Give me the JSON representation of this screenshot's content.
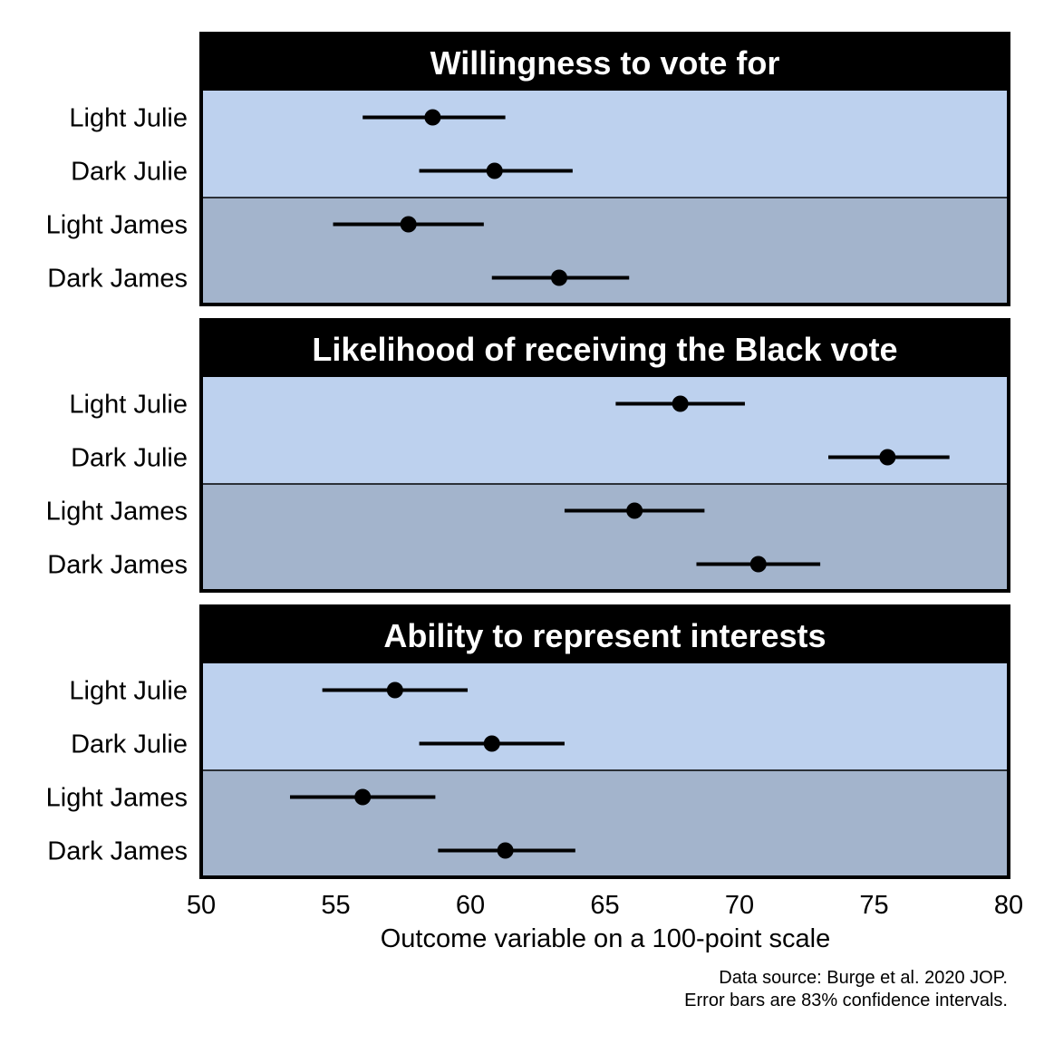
{
  "chart_data": {
    "type": "dot-whisker",
    "xlabel": "Outcome variable on a 100-point scale",
    "xlim": [
      50,
      80
    ],
    "xticks": [
      50,
      55,
      60,
      65,
      70,
      75,
      80
    ],
    "xtick_labels": [
      "50",
      "55",
      "60",
      "65",
      "70",
      "75",
      "80"
    ],
    "grid": false,
    "colors": {
      "julie_band": "#BDD1EE",
      "james_band": "#A3B4CC",
      "header": "#000000",
      "marks": "#000000"
    },
    "panels": [
      {
        "title": "Willingness to vote for",
        "rows": [
          {
            "label": "Light Julie",
            "estimate": 58.6,
            "lower": 56.0,
            "upper": 61.3
          },
          {
            "label": "Dark Julie",
            "estimate": 60.9,
            "lower": 58.1,
            "upper": 63.8
          },
          {
            "label": "Light James",
            "estimate": 57.7,
            "lower": 54.9,
            "upper": 60.5
          },
          {
            "label": "Dark James",
            "estimate": 63.3,
            "lower": 60.8,
            "upper": 65.9
          }
        ]
      },
      {
        "title": "Likelihood of receiving the Black vote",
        "rows": [
          {
            "label": "Light Julie",
            "estimate": 67.8,
            "lower": 65.4,
            "upper": 70.2
          },
          {
            "label": "Dark Julie",
            "estimate": 75.5,
            "lower": 73.3,
            "upper": 77.8
          },
          {
            "label": "Light James",
            "estimate": 66.1,
            "lower": 63.5,
            "upper": 68.7
          },
          {
            "label": "Dark James",
            "estimate": 70.7,
            "lower": 68.4,
            "upper": 73.0
          }
        ]
      },
      {
        "title": "Ability to represent interests",
        "rows": [
          {
            "label": "Light Julie",
            "estimate": 57.2,
            "lower": 54.5,
            "upper": 59.9
          },
          {
            "label": "Dark Julie",
            "estimate": 60.8,
            "lower": 58.1,
            "upper": 63.5
          },
          {
            "label": "Light James",
            "estimate": 56.0,
            "lower": 53.3,
            "upper": 58.7
          },
          {
            "label": "Dark James",
            "estimate": 61.3,
            "lower": 58.8,
            "upper": 63.9
          }
        ]
      }
    ],
    "annotations": [
      "Data source: Burge et al. 2020 JOP.",
      "Error bars are 83% confidence intervals."
    ]
  }
}
